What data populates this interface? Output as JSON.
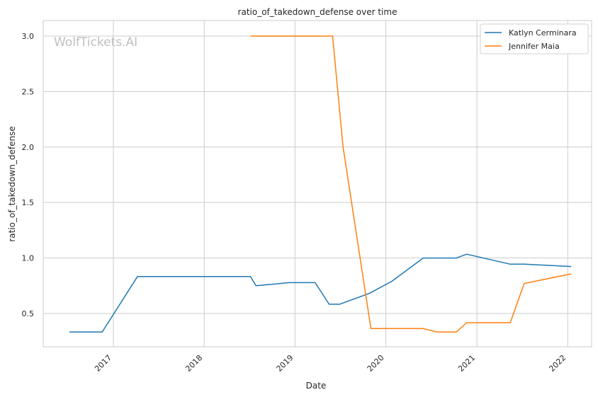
{
  "chart_data": {
    "type": "line",
    "title": "ratio_of_takedown_defense over time",
    "xlabel": "Date",
    "ylabel": "ratio_of_takedown_defense",
    "watermark": "WolfTickets.AI",
    "grid": true,
    "legend_position": "top-right",
    "xlim": [
      "2016-03-25",
      "2022-04-07"
    ],
    "ylim": [
      0.2,
      3.14
    ],
    "x_ticks": [
      "2017",
      "2018",
      "2019",
      "2020",
      "2021",
      "2022"
    ],
    "y_ticks": [
      "0.5",
      "1.0",
      "1.5",
      "2.0",
      "2.5",
      "3.0"
    ],
    "series": [
      {
        "name": "Katlyn Cerminara",
        "color": "#1f77b4",
        "points": [
          [
            "2016-07-08",
            0.333
          ],
          [
            "2016-11-17",
            0.333
          ],
          [
            "2017-04-08",
            0.833
          ],
          [
            "2018-07-06",
            0.833
          ],
          [
            "2018-07-28",
            0.75
          ],
          [
            "2018-12-08",
            0.778
          ],
          [
            "2019-03-23",
            0.778
          ],
          [
            "2019-05-18",
            0.583
          ],
          [
            "2019-06-29",
            0.583
          ],
          [
            "2019-10-26",
            0.68
          ],
          [
            "2020-01-25",
            0.79
          ],
          [
            "2020-05-30",
            1.0
          ],
          [
            "2020-10-10",
            1.0
          ],
          [
            "2020-11-21",
            1.034
          ],
          [
            "2021-05-15",
            0.944
          ],
          [
            "2021-07-10",
            0.944
          ],
          [
            "2022-01-15",
            0.923
          ]
        ]
      },
      {
        "name": "Jennifer Maia",
        "color": "#ff7f0e",
        "points": [
          [
            "2018-07-06",
            3.0
          ],
          [
            "2019-06-01",
            3.0
          ],
          [
            "2019-07-13",
            2.0
          ],
          [
            "2019-11-02",
            0.364
          ],
          [
            "2020-05-30",
            0.364
          ],
          [
            "2020-07-25",
            0.333
          ],
          [
            "2020-10-10",
            0.333
          ],
          [
            "2020-11-21",
            0.417
          ],
          [
            "2021-05-15",
            0.417
          ],
          [
            "2021-07-10",
            0.77
          ],
          [
            "2022-01-15",
            0.857
          ]
        ]
      }
    ]
  }
}
